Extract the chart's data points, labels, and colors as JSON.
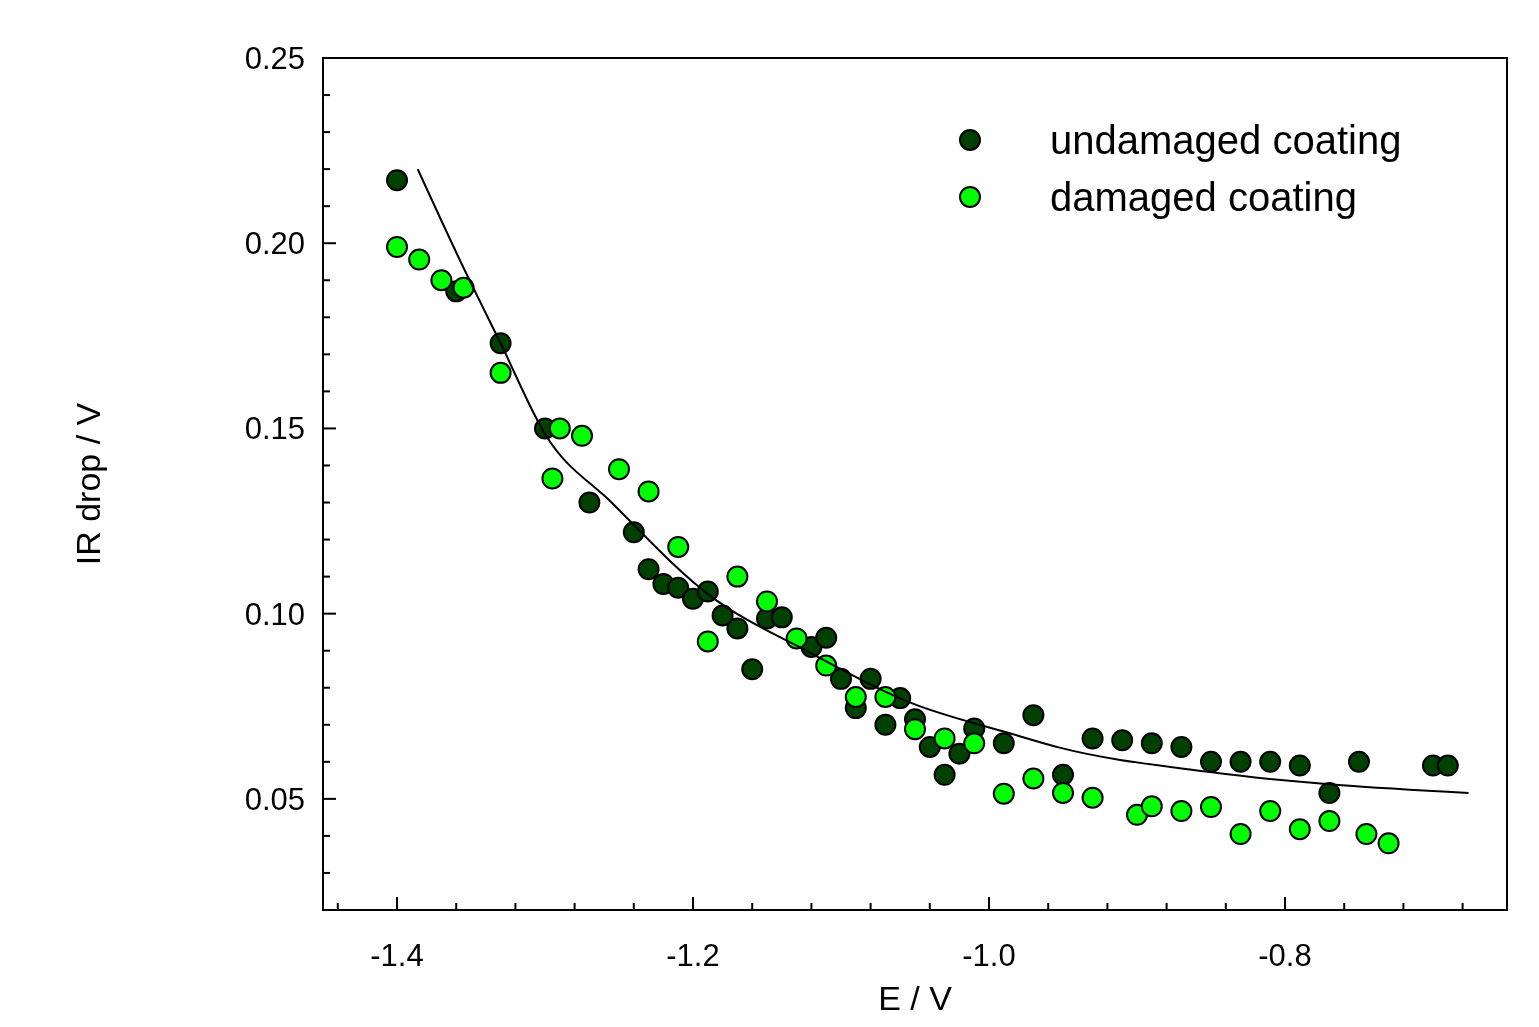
{
  "chart_data": {
    "type": "scatter",
    "xlabel": "E / V",
    "ylabel": "IR drop / V",
    "xlim": [
      -1.45,
      -0.65
    ],
    "ylim": [
      0.02,
      0.25
    ],
    "xticks": [
      {
        "value": -1.44,
        "label": null
      },
      -1.4,
      {
        "value": -1.36,
        "label": null
      },
      {
        "value": -1.32,
        "label": null
      },
      {
        "value": -1.28,
        "label": null
      },
      {
        "value": -1.24,
        "label": null
      },
      -1.2,
      {
        "value": -1.16,
        "label": null
      },
      {
        "value": -1.12,
        "label": null
      },
      {
        "value": -1.08,
        "label": null
      },
      {
        "value": -1.04,
        "label": null
      },
      {
        "value": -1.0,
        "label": "-1.0"
      },
      {
        "value": -0.96,
        "label": null
      },
      {
        "value": -0.92,
        "label": null
      },
      {
        "value": -0.88,
        "label": null
      },
      {
        "value": -0.84,
        "label": null
      },
      -0.8,
      {
        "value": -0.76,
        "label": null
      },
      {
        "value": -0.72,
        "label": null
      },
      {
        "value": -0.68,
        "label": null
      }
    ],
    "yticks": [
      {
        "value": 0.02,
        "label": null
      },
      {
        "value": 0.03,
        "label": null
      },
      {
        "value": 0.04,
        "label": null
      },
      0.05,
      {
        "value": 0.06,
        "label": null
      },
      {
        "value": 0.07,
        "label": null
      },
      {
        "value": 0.08,
        "label": null
      },
      {
        "value": 0.09,
        "label": null
      },
      {
        "value": 0.1,
        "label": "0.10"
      },
      {
        "value": 0.11,
        "label": null
      },
      {
        "value": 0.12,
        "label": null
      },
      {
        "value": 0.13,
        "label": null
      },
      {
        "value": 0.14,
        "label": null
      },
      0.15,
      {
        "value": 0.16,
        "label": null
      },
      {
        "value": 0.17,
        "label": null
      },
      {
        "value": 0.18,
        "label": null
      },
      {
        "value": 0.19,
        "label": null
      },
      {
        "value": 0.2,
        "label": "0.20"
      },
      {
        "value": 0.21,
        "label": null
      },
      {
        "value": 0.22,
        "label": null
      },
      {
        "value": 0.23,
        "label": null
      },
      {
        "value": 0.24,
        "label": null
      },
      0.25
    ],
    "grid": false,
    "legend": "top right",
    "series": [
      {
        "name": "undamaged coating",
        "color": "#004000",
        "marker": "circle",
        "x": [
          -1.4,
          -1.36,
          -1.33,
          -1.3,
          -1.27,
          -1.24,
          -1.23,
          -1.22,
          -1.21,
          -1.2,
          -1.19,
          -1.18,
          -1.17,
          -1.16,
          -1.15,
          -1.14,
          -1.12,
          -1.11,
          -1.1,
          -1.09,
          -1.08,
          -1.07,
          -1.06,
          -1.05,
          -1.04,
          -1.03,
          -1.02,
          -1.01,
          -0.99,
          -0.97,
          -0.95,
          -0.93,
          -0.91,
          -0.89,
          -0.87,
          -0.85,
          -0.83,
          -0.81,
          -0.79,
          -0.77,
          -0.75,
          -0.7,
          -0.69
        ],
        "values": [
          0.217,
          0.187,
          0.173,
          0.15,
          0.13,
          0.122,
          0.112,
          0.108,
          0.107,
          0.104,
          0.106,
          0.0995,
          0.096,
          0.085,
          0.0987,
          0.099,
          0.091,
          0.0935,
          0.0824,
          0.0745,
          0.0824,
          0.07,
          0.0772,
          0.0715,
          0.064,
          0.0565,
          0.0622,
          0.069,
          0.065,
          0.0726,
          0.0565,
          0.0663,
          0.0658,
          0.065,
          0.064,
          0.06,
          0.06,
          0.06,
          0.059,
          0.0516,
          0.06,
          0.059,
          0.059
        ]
      },
      {
        "name": "damaged coating",
        "color": "#00ff00",
        "marker": "circle",
        "x": [
          -1.4,
          -1.385,
          -1.37,
          -1.355,
          -1.33,
          -1.295,
          -1.29,
          -1.275,
          -1.25,
          -1.23,
          -1.21,
          -1.19,
          -1.17,
          -1.15,
          -1.13,
          -1.11,
          -1.09,
          -1.07,
          -1.05,
          -1.03,
          -1.01,
          -0.99,
          -0.97,
          -0.95,
          -0.93,
          -0.9,
          -0.89,
          -0.87,
          -0.85,
          -0.83,
          -0.81,
          -0.79,
          -0.77,
          -0.745,
          -0.73
        ],
        "values": [
          0.199,
          0.1956,
          0.19,
          0.188,
          0.165,
          0.1365,
          0.15,
          0.148,
          0.139,
          0.133,
          0.118,
          0.0925,
          0.11,
          0.1033,
          0.0933,
          0.086,
          0.0775,
          0.0775,
          0.0688,
          0.0663,
          0.065,
          0.0514,
          0.0555,
          0.0516,
          0.0503,
          0.0457,
          0.048,
          0.0467,
          0.0478,
          0.0405,
          0.0467,
          0.0418,
          0.044,
          0.0405,
          0.038
        ]
      },
      {
        "type": "line",
        "color": "#000000",
        "marker": "none",
        "line_style": "solid",
        "x": [
          -1.386,
          -1.357,
          -1.33,
          -1.3,
          -1.255,
          -1.189,
          -1.122,
          -1.054,
          -0.986,
          -0.953,
          -0.852,
          -0.676
        ],
        "values": [
          0.22,
          0.195,
          0.173,
          0.1485,
          0.13,
          0.105,
          0.0897,
          0.0761,
          0.0677,
          0.0639,
          0.0573,
          0.0516
        ]
      }
    ]
  }
}
